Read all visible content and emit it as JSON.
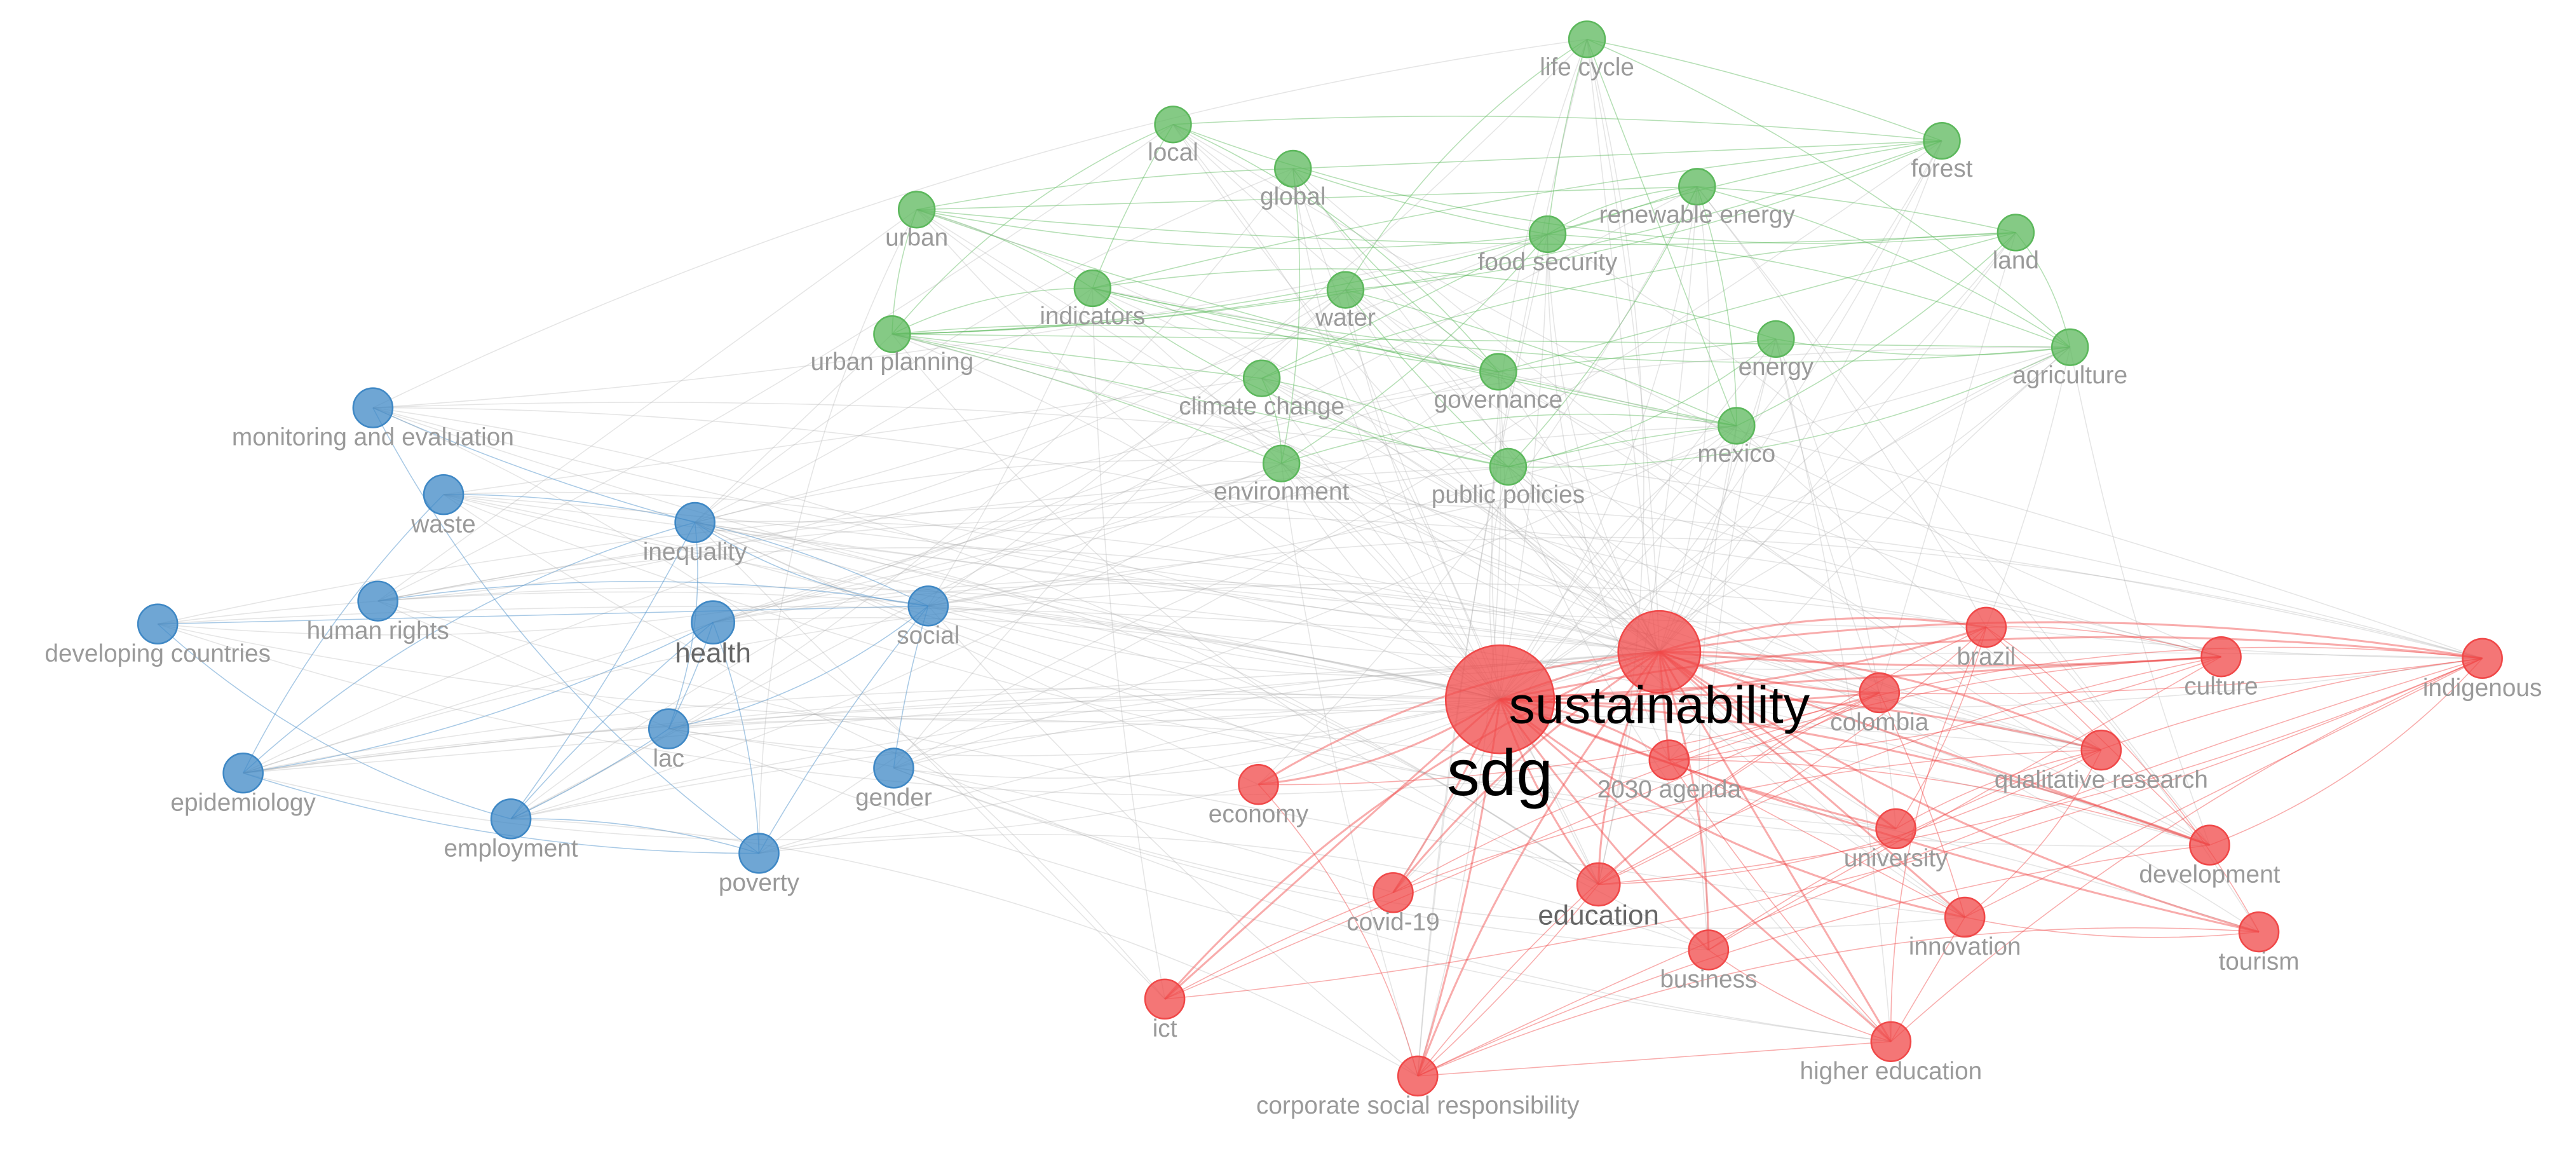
{
  "clusters": [
    {
      "color": "#5cb85c",
      "nodes": [
        "life cycle",
        "local",
        "global",
        "forest",
        "renewable energy",
        "urban",
        "food security",
        "land",
        "indicators",
        "water",
        "urban planning",
        "energy",
        "agriculture",
        "climate change",
        "governance",
        "mexico",
        "environment",
        "public policies"
      ]
    },
    {
      "color": "#3f88c5",
      "nodes": [
        "monitoring and evaluation",
        "waste",
        "inequality",
        "human rights",
        "developing countries",
        "health",
        "social",
        "lac",
        "epidemiology",
        "gender",
        "employment",
        "poverty"
      ]
    },
    {
      "color": "#f04848",
      "nodes": [
        "sdg",
        "sustainability",
        "brazil",
        "culture",
        "indigenous",
        "colombia",
        "2030 agenda",
        "qualitative research",
        "economy",
        "university",
        "development",
        "covid-19",
        "education",
        "innovation",
        "tourism",
        "business",
        "ict",
        "higher education",
        "corporate social responsibility"
      ]
    }
  ]
}
